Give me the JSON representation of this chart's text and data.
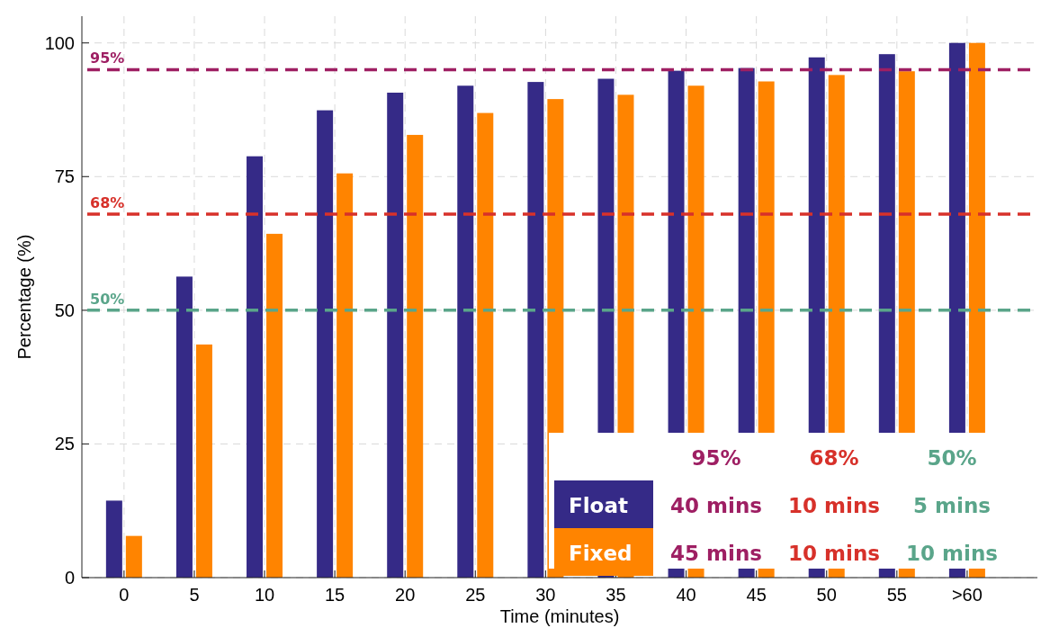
{
  "chart_data": {
    "type": "bar",
    "xlabel": "Time (minutes)",
    "ylabel": "Percentage (%)",
    "categories": [
      "0",
      "5",
      "10",
      "15",
      "20",
      "25",
      "30",
      "35",
      "40",
      "45",
      "50",
      "55",
      ">60"
    ],
    "series": [
      {
        "name": "Float",
        "color": "#352a87",
        "values": [
          14.4,
          56.3,
          78.8,
          87.4,
          90.7,
          92.0,
          92.7,
          93.3,
          94.8,
          95.3,
          97.3,
          97.9,
          100
        ]
      },
      {
        "name": "Fixed",
        "color": "#ff8400",
        "values": [
          7.8,
          43.6,
          64.3,
          75.6,
          82.8,
          86.9,
          89.5,
          90.3,
          92.0,
          92.8,
          94.0,
          94.7,
          100
        ]
      }
    ],
    "ylim": [
      0,
      105
    ],
    "yticks": [
      0,
      25,
      50,
      75,
      100
    ],
    "grid": true,
    "legend": "bottom right",
    "line_style": "dashed",
    "ref_lines": [
      {
        "axis": "y",
        "value": 95,
        "label": "95%",
        "color": "#9e1f63"
      },
      {
        "axis": "y",
        "value": 68,
        "label": "68%",
        "color": "#d7312a"
      },
      {
        "axis": "y",
        "value": 50,
        "label": "50%",
        "color": "#5aa58a"
      }
    ],
    "annotations": [
      "95%",
      "68%",
      "50%",
      "40 mins",
      "10 mins",
      "5 mins",
      "45 mins",
      "10 mins",
      "10 mins"
    ]
  }
}
